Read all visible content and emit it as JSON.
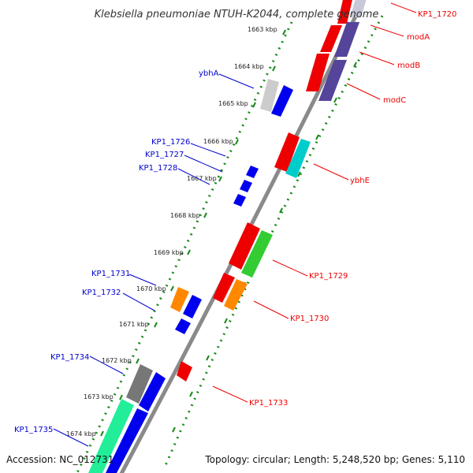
{
  "title": "Klebsiella pneumoniae NTUH-K2044, complete genome",
  "footer": {
    "accession": "Accession: NC_012731",
    "topology": "Topology: circular; Length: 5,248,520 bp; Genes: 5,110"
  },
  "colors": {
    "backbone": "#8a8a8a",
    "tick_dots": "#1a8a1a",
    "label_blue": "#0000cc",
    "label_red": "#ee0000",
    "gene_red": "#ee0000",
    "gene_blue": "#0000ee",
    "gene_green": "#33cc33",
    "gene_cyan": "#00cccc",
    "gene_orange": "#ff8800",
    "gene_purple": "#554499",
    "gene_gray": "#777777",
    "gene_lightgray": "#cccccc",
    "gene_mint": "#22ee99"
  },
  "ticks": [
    "1663 kbp",
    "1664 kbp",
    "1665 kbp",
    "1666 kbp",
    "1667 kbp",
    "1668 kbp",
    "1669 kbp",
    "1670 kbp",
    "1671 kbp",
    "1672 kbp",
    "1673 kbp",
    "1674 kbp"
  ],
  "gene_labels": {
    "ybhA": "ybhA",
    "KP1_1726": "KP1_1726",
    "KP1_1727": "KP1_1727",
    "KP1_1728": "KP1_1728",
    "KP1_1731": "KP1_1731",
    "KP1_1732": "KP1_1732",
    "KP1_1734": "KP1_1734",
    "KP1_1735": "KP1_1735",
    "KP1_1720": "KP1_1720",
    "modA": "modA",
    "modB": "modB",
    "modC": "modC",
    "ybhE": "ybhE",
    "KP1_1729": "KP1_1729",
    "KP1_1730": "KP1_1730",
    "KP1_1733": "KP1_1733"
  }
}
